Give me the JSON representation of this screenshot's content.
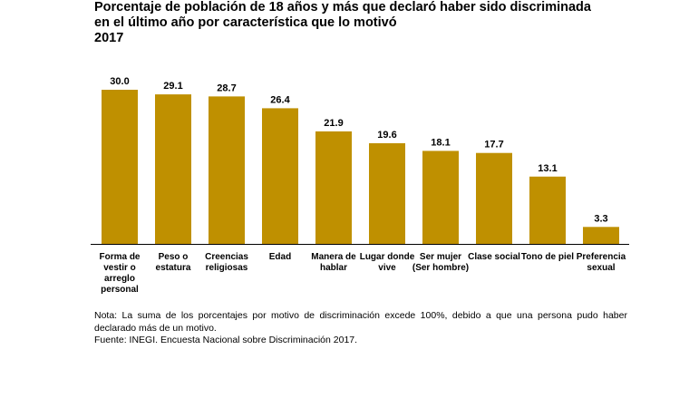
{
  "title": {
    "line1": "Porcentaje de población de 18 años y más que declaró haber sido discriminada",
    "line2": "en el último año por característica que lo motivó",
    "line3": "2017"
  },
  "notes": {
    "line1": "Nota: La suma de los porcentajes por motivo de discriminación excede 100%, debido a que una persona pudo haber",
    "line2": "declarado más de un motivo.",
    "source": "Fuente: INEGI. Encuesta Nacional sobre Discriminación 2017."
  },
  "chart_data": {
    "type": "bar",
    "bar_color": "#BF9000",
    "ylim": [
      0,
      30
    ],
    "grid": false,
    "categories": [
      [
        "Forma de",
        "vestir o",
        "arreglo",
        "personal"
      ],
      [
        "Peso o",
        "estatura"
      ],
      [
        "Creencias",
        "religiosas"
      ],
      [
        "Edad"
      ],
      [
        "Manera de",
        "hablar"
      ],
      [
        "Lugar donde",
        "vive"
      ],
      [
        "Ser mujer",
        "(Ser hombre)"
      ],
      [
        "Clase social"
      ],
      [
        "Tono de piel"
      ],
      [
        "Preferencia",
        "sexual"
      ]
    ],
    "values": [
      30.0,
      29.1,
      28.7,
      26.4,
      21.9,
      19.6,
      18.1,
      17.7,
      13.1,
      3.3
    ],
    "value_labels": [
      "30.0",
      "29.1",
      "28.7",
      "26.4",
      "21.9",
      "19.6",
      "18.1",
      "17.7",
      "13.1",
      "3.3"
    ]
  }
}
